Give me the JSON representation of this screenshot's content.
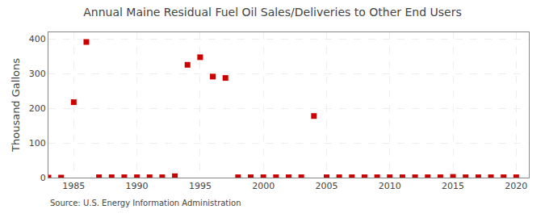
{
  "chart_data": {
    "type": "scatter",
    "title": "Annual Maine Residual Fuel Oil Sales/Deliveries to Other End Users",
    "ylabel": "Thousand Gallons",
    "annotation": "Source: U.S. Energy Information Administration",
    "x": [
      1983,
      1984,
      1985,
      1986,
      1987,
      1988,
      1989,
      1990,
      1991,
      1992,
      1993,
      1994,
      1995,
      1996,
      1997,
      1998,
      1999,
      2000,
      2001,
      2002,
      2003,
      2004,
      2005,
      2006,
      2007,
      2008,
      2009,
      2010,
      2011,
      2012,
      2013,
      2014,
      2015,
      2016,
      2017,
      2018,
      2019,
      2020
    ],
    "values": [
      0,
      0,
      218,
      392,
      1,
      1,
      1,
      1,
      1,
      1,
      4,
      326,
      348,
      292,
      288,
      1,
      1,
      1,
      1,
      1,
      1,
      178,
      1,
      1,
      1,
      1,
      1,
      1,
      1,
      1,
      1,
      1,
      2,
      1,
      1,
      1,
      1,
      1
    ],
    "color": "#cc0000",
    "marker": "square",
    "xlim": [
      1983,
      2021
    ],
    "xticks": [
      1985,
      1990,
      1995,
      2000,
      2005,
      2010,
      2015,
      2020
    ],
    "ylim": [
      0,
      420
    ],
    "yticks": [
      0,
      100,
      200,
      300,
      400
    ],
    "grid": true
  }
}
